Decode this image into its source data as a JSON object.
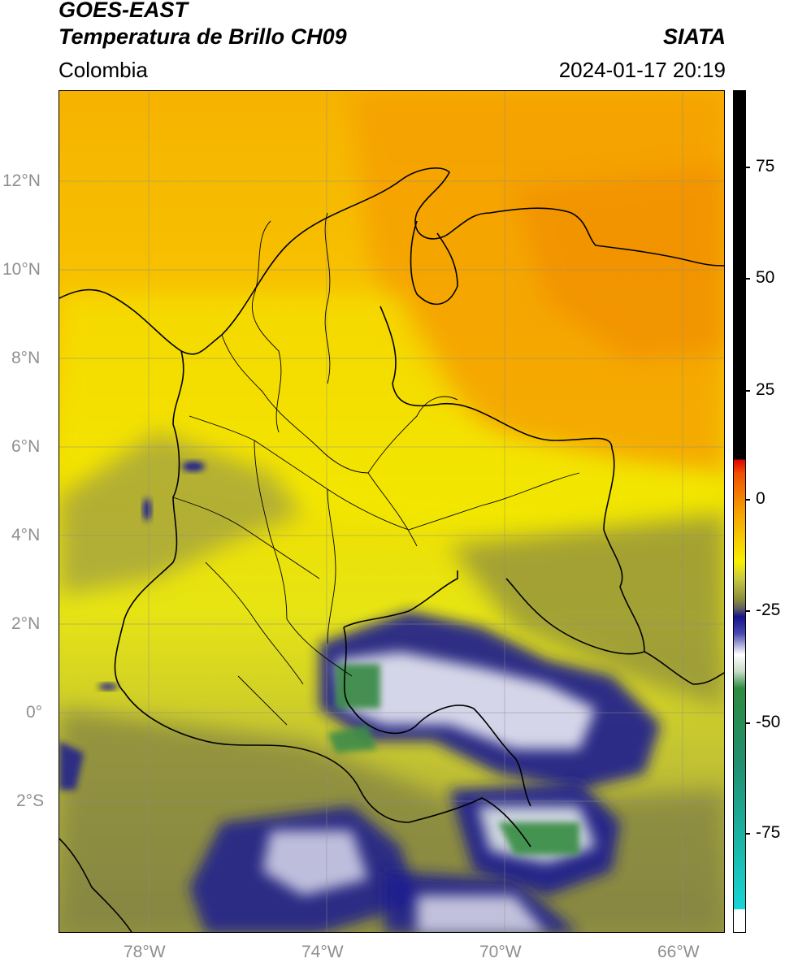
{
  "header": {
    "satellite": "GOES-EAST",
    "product": "Temperatura de Brillo CH09",
    "organization": "SIATA",
    "region": "Colombia",
    "datetime": "2024-01-17 20:19"
  },
  "map": {
    "lat_labels": [
      "12°N",
      "10°N",
      "8°N",
      "6°N",
      "4°N",
      "2°N",
      "0°",
      "2°S"
    ],
    "lon_labels": [
      "78°W",
      "74°W",
      "70°W",
      "66°W"
    ],
    "lat_range": [
      -5,
      14
    ],
    "lon_range": [
      -80,
      -65
    ],
    "gridlines": true
  },
  "colorbar": {
    "tick_labels": [
      "75",
      "50",
      "25",
      "0",
      "-25",
      "-50",
      "-75"
    ],
    "colors": {
      "warm_black": "#000000",
      "red": "#e00000",
      "orange": "#f5a000",
      "yellow": "#f8f000",
      "olive": "#8c8c3c",
      "navy": "#14148c",
      "white": "#ffffff",
      "green": "#2e8b40",
      "cyan": "#18d4d4"
    }
  }
}
